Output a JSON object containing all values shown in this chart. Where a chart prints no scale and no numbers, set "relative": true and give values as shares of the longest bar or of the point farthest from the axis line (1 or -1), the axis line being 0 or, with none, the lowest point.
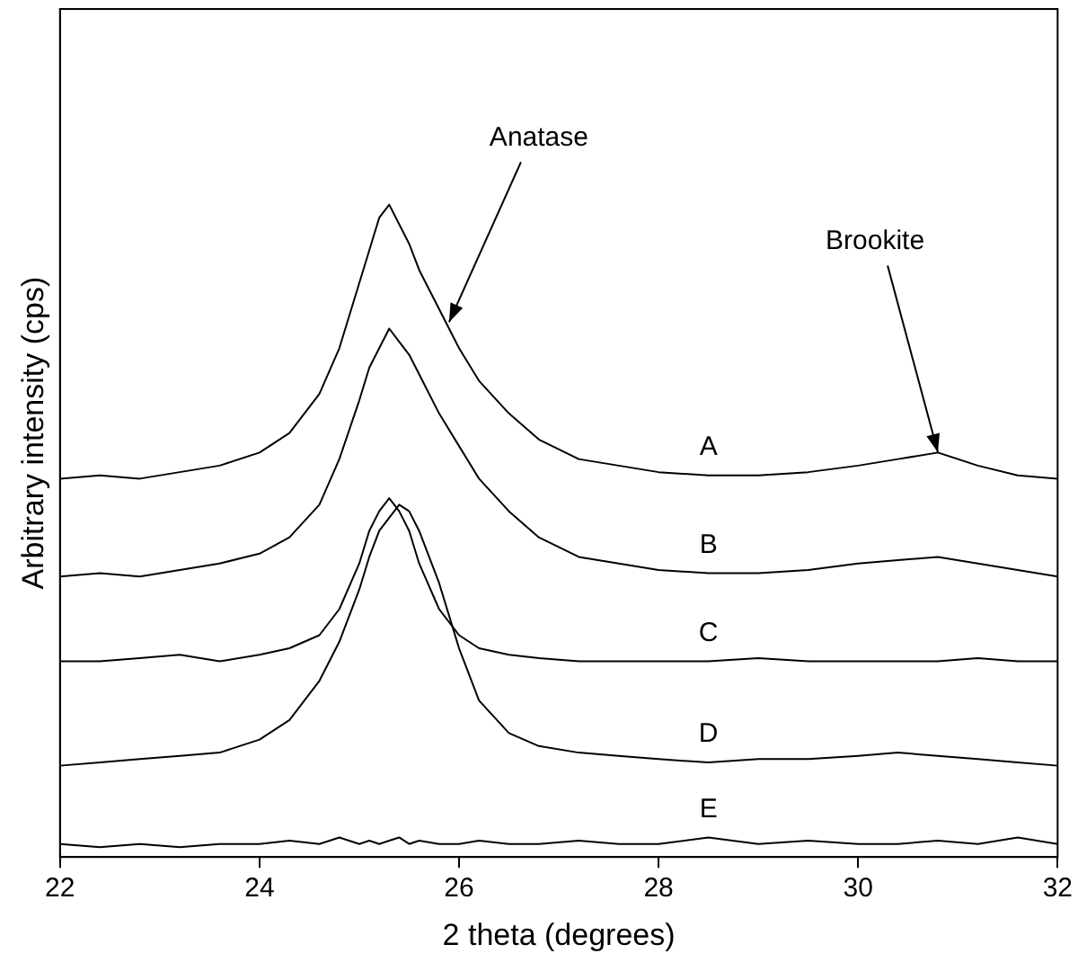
{
  "chart_data": {
    "type": "line",
    "relative": true,
    "xlabel": "2 theta (degrees)",
    "ylabel": "Arbitrary intensity (cps)",
    "x": [
      22,
      22.4,
      22.8,
      23.2,
      23.6,
      24.0,
      24.3,
      24.6,
      24.8,
      25.0,
      25.1,
      25.2,
      25.3,
      25.4,
      25.5,
      25.6,
      25.8,
      26.0,
      26.2,
      26.5,
      26.8,
      27.2,
      27.6,
      28.0,
      28.5,
      29.0,
      29.5,
      30.0,
      30.4,
      30.8,
      31.2,
      31.6,
      32.0
    ],
    "xlim": [
      22,
      32
    ],
    "xticks": [
      22,
      24,
      26,
      28,
      30,
      32
    ],
    "grid": false,
    "legend": false,
    "marker": "none",
    "line_style": "solid",
    "series": [
      {
        "name": "A",
        "color": "#000000",
        "values": [
          0.58,
          0.585,
          0.58,
          0.59,
          0.6,
          0.62,
          0.65,
          0.71,
          0.78,
          0.88,
          0.93,
          0.98,
          1.0,
          0.97,
          0.94,
          0.9,
          0.84,
          0.78,
          0.73,
          0.68,
          0.64,
          0.61,
          0.6,
          0.59,
          0.585,
          0.585,
          0.59,
          0.6,
          0.61,
          0.62,
          0.6,
          0.585,
          0.58
        ]
      },
      {
        "name": "B",
        "color": "#000000",
        "values": [
          0.43,
          0.435,
          0.43,
          0.44,
          0.45,
          0.465,
          0.49,
          0.54,
          0.61,
          0.7,
          0.75,
          0.78,
          0.81,
          0.79,
          0.77,
          0.74,
          0.68,
          0.63,
          0.58,
          0.53,
          0.49,
          0.46,
          0.45,
          0.44,
          0.435,
          0.435,
          0.44,
          0.45,
          0.455,
          0.46,
          0.45,
          0.44,
          0.43
        ]
      },
      {
        "name": "C",
        "color": "#000000",
        "values": [
          0.3,
          0.3,
          0.305,
          0.31,
          0.3,
          0.31,
          0.32,
          0.34,
          0.38,
          0.45,
          0.5,
          0.53,
          0.55,
          0.53,
          0.5,
          0.45,
          0.38,
          0.34,
          0.32,
          0.31,
          0.305,
          0.3,
          0.3,
          0.3,
          0.3,
          0.305,
          0.3,
          0.3,
          0.3,
          0.3,
          0.305,
          0.3,
          0.3
        ]
      },
      {
        "name": "D",
        "color": "#000000",
        "values": [
          0.14,
          0.145,
          0.15,
          0.155,
          0.16,
          0.18,
          0.21,
          0.27,
          0.33,
          0.41,
          0.46,
          0.5,
          0.52,
          0.54,
          0.53,
          0.5,
          0.42,
          0.32,
          0.24,
          0.19,
          0.17,
          0.16,
          0.155,
          0.15,
          0.145,
          0.15,
          0.15,
          0.155,
          0.16,
          0.155,
          0.15,
          0.145,
          0.14
        ]
      },
      {
        "name": "E",
        "color": "#000000",
        "values": [
          0.02,
          0.015,
          0.02,
          0.015,
          0.02,
          0.02,
          0.025,
          0.02,
          0.03,
          0.02,
          0.025,
          0.02,
          0.025,
          0.03,
          0.02,
          0.025,
          0.02,
          0.02,
          0.025,
          0.02,
          0.02,
          0.025,
          0.02,
          0.02,
          0.03,
          0.02,
          0.025,
          0.02,
          0.02,
          0.025,
          0.02,
          0.03,
          0.02
        ]
      }
    ],
    "annotations": [
      {
        "text": "Anatase",
        "x": 25.9,
        "y": 0.82
      },
      {
        "text": "Brookite",
        "x": 30.8,
        "y": 0.62
      }
    ]
  }
}
